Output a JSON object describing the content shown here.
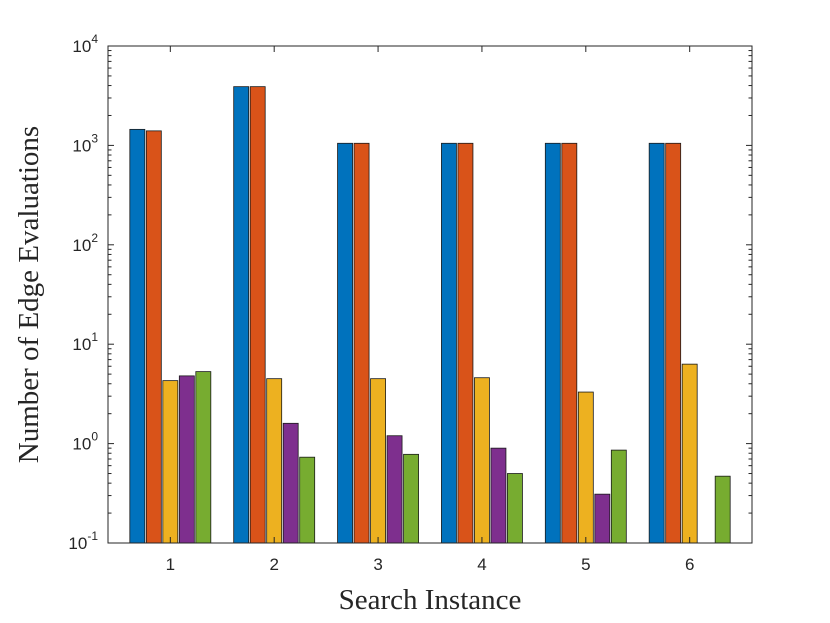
{
  "chart_data": {
    "type": "bar",
    "title": "",
    "xlabel": "Search Instance",
    "ylabel": "Number of Edge Evaluations",
    "yscale": "log",
    "ylim": [
      0.1,
      10000
    ],
    "grid": false,
    "categories": [
      "1",
      "2",
      "3",
      "4",
      "5",
      "6"
    ],
    "y_ticks": [
      {
        "base": "10",
        "exp": "-1"
      },
      {
        "base": "10",
        "exp": "0"
      },
      {
        "base": "10",
        "exp": "1"
      },
      {
        "base": "10",
        "exp": "2"
      },
      {
        "base": "10",
        "exp": "3"
      },
      {
        "base": "10",
        "exp": "4"
      }
    ],
    "series": [
      {
        "color": "#0072BD",
        "values": [
          1450,
          3900,
          1050,
          1050,
          1050,
          1050
        ]
      },
      {
        "color": "#D95319",
        "values": [
          1400,
          3900,
          1050,
          1050,
          1050,
          1050
        ]
      },
      {
        "color": "#EDB120",
        "values": [
          4.3,
          4.5,
          4.5,
          4.6,
          3.3,
          6.3
        ]
      },
      {
        "color": "#7E2F8E",
        "values": [
          4.8,
          1.6,
          1.2,
          0.9,
          0.31,
          null
        ]
      },
      {
        "color": "#77AC30",
        "values": [
          5.3,
          0.73,
          0.78,
          0.5,
          0.86,
          0.47
        ]
      }
    ]
  }
}
